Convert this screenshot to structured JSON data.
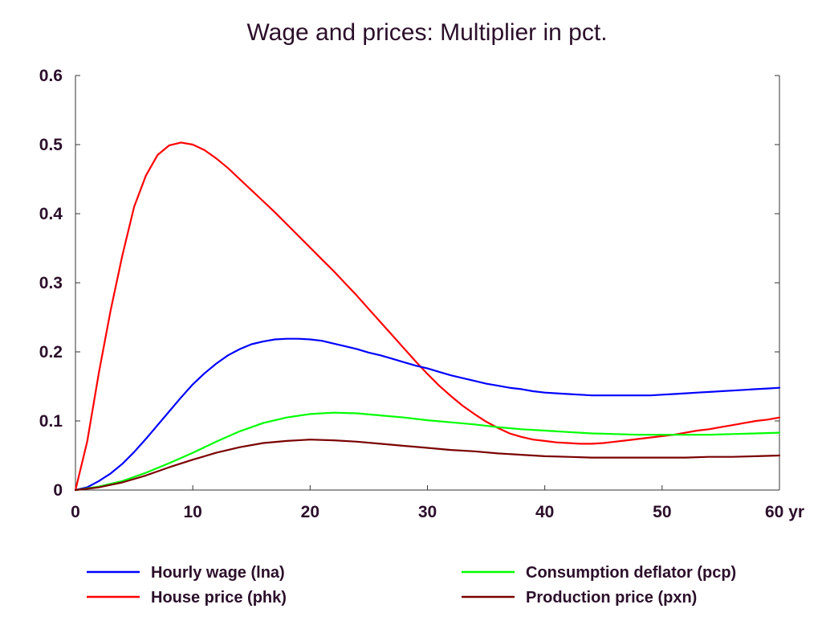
{
  "chart_data": {
    "type": "line",
    "title": "Wage and prices: Multiplier in pct.",
    "xlabel": "",
    "ylabel": "",
    "xlim": [
      0,
      60
    ],
    "ylim": [
      0,
      0.6
    ],
    "grid": false,
    "legend_position": "bottom",
    "x_ticks": [
      {
        "value": 0,
        "label": "0"
      },
      {
        "value": 10,
        "label": "10"
      },
      {
        "value": 20,
        "label": "20"
      },
      {
        "value": 30,
        "label": "30"
      },
      {
        "value": 40,
        "label": "40"
      },
      {
        "value": 50,
        "label": "50"
      },
      {
        "value": 60,
        "label": "60 yr"
      }
    ],
    "y_ticks": [
      {
        "value": 0,
        "label": "0"
      },
      {
        "value": 0.1,
        "label": "0.1"
      },
      {
        "value": 0.2,
        "label": "0.2"
      },
      {
        "value": 0.3,
        "label": "0.3"
      },
      {
        "value": 0.4,
        "label": "0.4"
      },
      {
        "value": 0.5,
        "label": "0.5"
      },
      {
        "value": 0.6,
        "label": "0.6"
      }
    ],
    "series": [
      {
        "name": "Hourly wage (lna)",
        "color": "#0000ff",
        "points": [
          [
            0,
            0
          ],
          [
            1,
            0.004
          ],
          [
            2,
            0.013
          ],
          [
            3,
            0.024
          ],
          [
            4,
            0.038
          ],
          [
            5,
            0.055
          ],
          [
            6,
            0.074
          ],
          [
            7,
            0.094
          ],
          [
            8,
            0.114
          ],
          [
            9,
            0.134
          ],
          [
            10,
            0.153
          ],
          [
            11,
            0.169
          ],
          [
            12,
            0.183
          ],
          [
            13,
            0.195
          ],
          [
            14,
            0.204
          ],
          [
            15,
            0.211
          ],
          [
            16,
            0.215
          ],
          [
            17,
            0.218
          ],
          [
            18,
            0.219
          ],
          [
            19,
            0.219
          ],
          [
            20,
            0.218
          ],
          [
            21,
            0.216
          ],
          [
            22,
            0.212
          ],
          [
            23,
            0.208
          ],
          [
            24,
            0.204
          ],
          [
            25,
            0.199
          ],
          [
            26,
            0.195
          ],
          [
            27,
            0.19
          ],
          [
            28,
            0.185
          ],
          [
            29,
            0.18
          ],
          [
            30,
            0.176
          ],
          [
            31,
            0.171
          ],
          [
            32,
            0.166
          ],
          [
            33,
            0.162
          ],
          [
            34,
            0.158
          ],
          [
            35,
            0.154
          ],
          [
            36,
            0.151
          ],
          [
            37,
            0.148
          ],
          [
            38,
            0.146
          ],
          [
            39,
            0.143
          ],
          [
            40,
            0.141
          ],
          [
            41,
            0.14
          ],
          [
            42,
            0.139
          ],
          [
            43,
            0.138
          ],
          [
            44,
            0.137
          ],
          [
            45,
            0.137
          ],
          [
            46,
            0.137
          ],
          [
            47,
            0.137
          ],
          [
            48,
            0.137
          ],
          [
            49,
            0.137
          ],
          [
            50,
            0.138
          ],
          [
            51,
            0.139
          ],
          [
            52,
            0.14
          ],
          [
            53,
            0.141
          ],
          [
            54,
            0.142
          ],
          [
            55,
            0.143
          ],
          [
            56,
            0.144
          ],
          [
            57,
            0.145
          ],
          [
            58,
            0.146
          ],
          [
            59,
            0.147
          ],
          [
            60,
            0.148
          ]
        ]
      },
      {
        "name": "House price (phk)",
        "color": "#ff0000",
        "points": [
          [
            0,
            0
          ],
          [
            1,
            0.07
          ],
          [
            2,
            0.17
          ],
          [
            3,
            0.26
          ],
          [
            4,
            0.34
          ],
          [
            5,
            0.41
          ],
          [
            6,
            0.455
          ],
          [
            7,
            0.485
          ],
          [
            8,
            0.499
          ],
          [
            9,
            0.503
          ],
          [
            10,
            0.5
          ],
          [
            11,
            0.492
          ],
          [
            12,
            0.48
          ],
          [
            13,
            0.466
          ],
          [
            14,
            0.45
          ],
          [
            15,
            0.434
          ],
          [
            16,
            0.418
          ],
          [
            17,
            0.402
          ],
          [
            18,
            0.385
          ],
          [
            19,
            0.368
          ],
          [
            20,
            0.351
          ],
          [
            21,
            0.334
          ],
          [
            22,
            0.317
          ],
          [
            23,
            0.299
          ],
          [
            24,
            0.281
          ],
          [
            25,
            0.262
          ],
          [
            26,
            0.243
          ],
          [
            27,
            0.224
          ],
          [
            28,
            0.205
          ],
          [
            29,
            0.186
          ],
          [
            30,
            0.168
          ],
          [
            31,
            0.151
          ],
          [
            32,
            0.136
          ],
          [
            33,
            0.122
          ],
          [
            34,
            0.11
          ],
          [
            35,
            0.099
          ],
          [
            36,
            0.09
          ],
          [
            37,
            0.082
          ],
          [
            38,
            0.077
          ],
          [
            39,
            0.073
          ],
          [
            40,
            0.071
          ],
          [
            41,
            0.069
          ],
          [
            42,
            0.068
          ],
          [
            43,
            0.067
          ],
          [
            44,
            0.067
          ],
          [
            45,
            0.068
          ],
          [
            46,
            0.07
          ],
          [
            47,
            0.072
          ],
          [
            48,
            0.074
          ],
          [
            49,
            0.076
          ],
          [
            50,
            0.078
          ],
          [
            51,
            0.08
          ],
          [
            52,
            0.083
          ],
          [
            53,
            0.086
          ],
          [
            54,
            0.088
          ],
          [
            55,
            0.091
          ],
          [
            56,
            0.094
          ],
          [
            57,
            0.097
          ],
          [
            58,
            0.1
          ],
          [
            59,
            0.102
          ],
          [
            60,
            0.105
          ]
        ]
      },
      {
        "name": "Consumption deflator (pcp)",
        "color": "#00ff00",
        "points": [
          [
            0,
            0
          ],
          [
            2,
            0.005
          ],
          [
            4,
            0.013
          ],
          [
            6,
            0.025
          ],
          [
            8,
            0.039
          ],
          [
            10,
            0.054
          ],
          [
            12,
            0.07
          ],
          [
            14,
            0.085
          ],
          [
            16,
            0.097
          ],
          [
            18,
            0.105
          ],
          [
            20,
            0.11
          ],
          [
            22,
            0.112
          ],
          [
            24,
            0.111
          ],
          [
            26,
            0.108
          ],
          [
            28,
            0.105
          ],
          [
            30,
            0.101
          ],
          [
            32,
            0.098
          ],
          [
            34,
            0.095
          ],
          [
            36,
            0.091
          ],
          [
            38,
            0.088
          ],
          [
            40,
            0.086
          ],
          [
            42,
            0.084
          ],
          [
            44,
            0.082
          ],
          [
            46,
            0.081
          ],
          [
            48,
            0.08
          ],
          [
            50,
            0.08
          ],
          [
            52,
            0.08
          ],
          [
            54,
            0.08
          ],
          [
            56,
            0.081
          ],
          [
            58,
            0.082
          ],
          [
            60,
            0.083
          ]
        ]
      },
      {
        "name": "Production price (pxn)",
        "color": "#7a0000",
        "points": [
          [
            0,
            0
          ],
          [
            2,
            0.004
          ],
          [
            4,
            0.011
          ],
          [
            6,
            0.021
          ],
          [
            8,
            0.033
          ],
          [
            10,
            0.044
          ],
          [
            12,
            0.054
          ],
          [
            14,
            0.062
          ],
          [
            16,
            0.068
          ],
          [
            18,
            0.071
          ],
          [
            20,
            0.073
          ],
          [
            22,
            0.072
          ],
          [
            24,
            0.07
          ],
          [
            26,
            0.067
          ],
          [
            28,
            0.064
          ],
          [
            30,
            0.061
          ],
          [
            32,
            0.058
          ],
          [
            34,
            0.056
          ],
          [
            36,
            0.053
          ],
          [
            38,
            0.051
          ],
          [
            40,
            0.049
          ],
          [
            42,
            0.048
          ],
          [
            44,
            0.047
          ],
          [
            46,
            0.047
          ],
          [
            48,
            0.047
          ],
          [
            50,
            0.047
          ],
          [
            52,
            0.047
          ],
          [
            54,
            0.048
          ],
          [
            56,
            0.048
          ],
          [
            58,
            0.049
          ],
          [
            60,
            0.05
          ]
        ]
      }
    ]
  }
}
